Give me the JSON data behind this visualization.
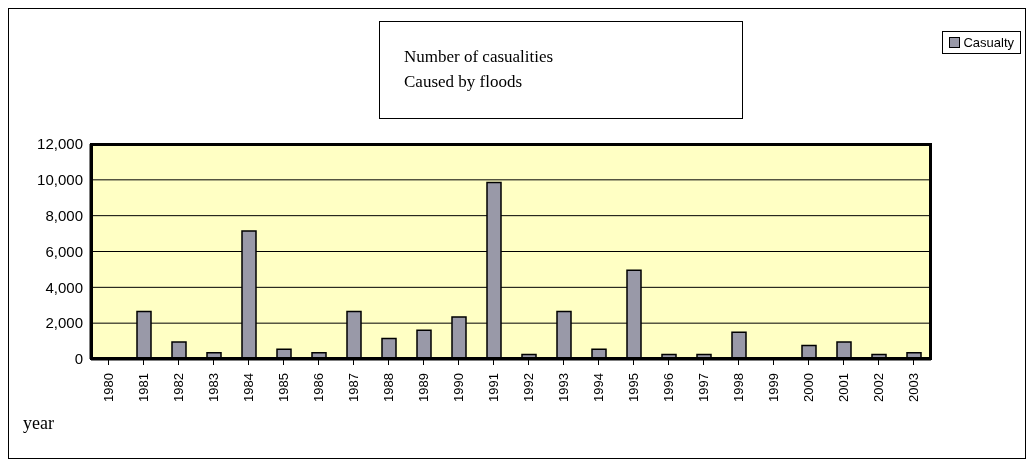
{
  "chart_data": {
    "type": "bar",
    "title": "Number of casualities\nCaused by floods",
    "xlabel": "year",
    "categories": [
      "1980",
      "1981",
      "1982",
      "1983",
      "1984",
      "1985",
      "1986",
      "1987",
      "1988",
      "1989",
      "1990",
      "1991",
      "1992",
      "1993",
      "1994",
      "1995",
      "1996",
      "1997",
      "1998",
      "1999",
      "2000",
      "2001",
      "2002",
      "2003"
    ],
    "series": [
      {
        "name": "Casualty",
        "color": "#9999a8",
        "values": [
          0,
          2650,
          950,
          350,
          7150,
          550,
          350,
          2650,
          1150,
          1600,
          2350,
          9850,
          250,
          2650,
          550,
          4950,
          250,
          250,
          1500,
          0,
          750,
          950,
          250,
          350
        ]
      }
    ],
    "ylim": [
      0,
      12000
    ],
    "yticks": [
      {
        "value": 0,
        "label": "0"
      },
      {
        "value": 2000,
        "label": "2,000"
      },
      {
        "value": 4000,
        "label": "4,000"
      },
      {
        "value": 6000,
        "label": "6,000"
      },
      {
        "value": 8000,
        "label": "8,000"
      },
      {
        "value": 10000,
        "label": "10,000"
      },
      {
        "value": 12000,
        "label": "12,000"
      }
    ],
    "grid": "y",
    "legend": "top right"
  }
}
